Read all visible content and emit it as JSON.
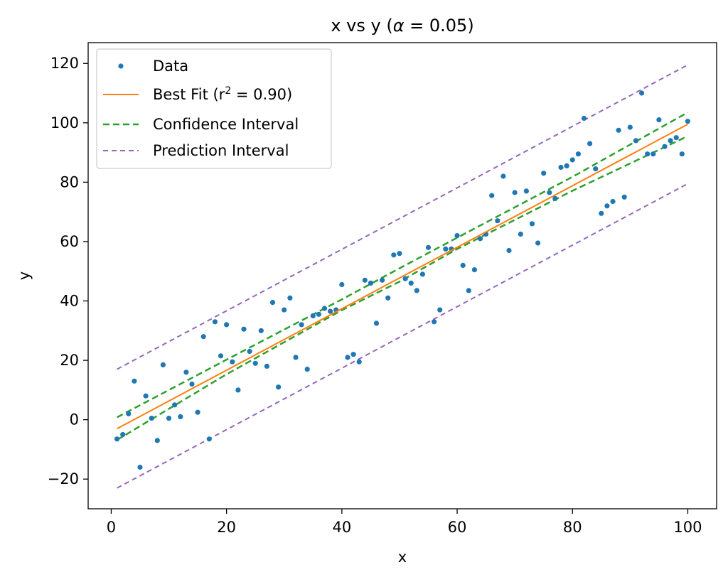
{
  "chart_data": {
    "type": "scatter",
    "title_prefix": "x vs y (",
    "title_alpha_symbol": "α",
    "title_suffix": " = 0.05)",
    "xlabel": "x",
    "ylabel": "y",
    "xlim": [
      -4,
      105
    ],
    "ylim": [
      -30,
      127
    ],
    "xticks": [
      0,
      20,
      40,
      60,
      80,
      100
    ],
    "yticks": [
      -20,
      0,
      20,
      40,
      60,
      80,
      100,
      120
    ],
    "grid": false,
    "legend_position": "top-left",
    "colors": {
      "data": "#1f77b4",
      "best_fit": "#ff7f0e",
      "confidence": "#2ca02c",
      "prediction": "#9467bd"
    },
    "legend": {
      "data": "Data",
      "best_fit_prefix": "Best Fit (",
      "best_fit_r": "r",
      "best_fit_exp": "2",
      "best_fit_suffix": " = 0.90)",
      "confidence": "Confidence Interval",
      "prediction": "Prediction Interval"
    },
    "series": [
      {
        "name": "Data",
        "kind": "scatter",
        "points": [
          [
            1,
            -6.5
          ],
          [
            2,
            -5
          ],
          [
            3,
            2
          ],
          [
            4,
            13
          ],
          [
            5,
            -16
          ],
          [
            6,
            8
          ],
          [
            7,
            0.5
          ],
          [
            8,
            -7
          ],
          [
            9,
            18.5
          ],
          [
            10,
            0.5
          ],
          [
            11,
            5
          ],
          [
            12,
            1
          ],
          [
            13,
            16
          ],
          [
            14,
            12
          ],
          [
            15,
            2.5
          ],
          [
            16,
            28
          ],
          [
            17,
            -6.5
          ],
          [
            18,
            33
          ],
          [
            19,
            21.5
          ],
          [
            20,
            32
          ],
          [
            21,
            19.5
          ],
          [
            22,
            10
          ],
          [
            23,
            30.5
          ],
          [
            24,
            23
          ],
          [
            25,
            19
          ],
          [
            26,
            30
          ],
          [
            27,
            18
          ],
          [
            28,
            39.5
          ],
          [
            29,
            11
          ],
          [
            30,
            37
          ],
          [
            31,
            41
          ],
          [
            32,
            21
          ],
          [
            33,
            32
          ],
          [
            34,
            17
          ],
          [
            35,
            35
          ],
          [
            36,
            35.5
          ],
          [
            37,
            37.5
          ],
          [
            38,
            36.5
          ],
          [
            39,
            37
          ],
          [
            40,
            45.5
          ],
          [
            41,
            21
          ],
          [
            42,
            22
          ],
          [
            43,
            19.5
          ],
          [
            44,
            47
          ],
          [
            45,
            46
          ],
          [
            46,
            32.5
          ],
          [
            47,
            47
          ],
          [
            48,
            41
          ],
          [
            49,
            55.5
          ],
          [
            50,
            56
          ],
          [
            51,
            47.5
          ],
          [
            52,
            46
          ],
          [
            53,
            43.5
          ],
          [
            54,
            49
          ],
          [
            55,
            58
          ],
          [
            56,
            33
          ],
          [
            57,
            37
          ],
          [
            58,
            57.5
          ],
          [
            59,
            57.5
          ],
          [
            60,
            62
          ],
          [
            61,
            52
          ],
          [
            62,
            43.5
          ],
          [
            63,
            50.5
          ],
          [
            64,
            61
          ],
          [
            65,
            62.5
          ],
          [
            66,
            75.5
          ],
          [
            67,
            67
          ],
          [
            68,
            82
          ],
          [
            69,
            57
          ],
          [
            70,
            76.5
          ],
          [
            71,
            62.5
          ],
          [
            72,
            77
          ],
          [
            73,
            66
          ],
          [
            74,
            59.5
          ],
          [
            75,
            83
          ],
          [
            76,
            76.5
          ],
          [
            77,
            74.5
          ],
          [
            78,
            85
          ],
          [
            79,
            85.5
          ],
          [
            80,
            87.5
          ],
          [
            81,
            89.5
          ],
          [
            82,
            101.5
          ],
          [
            83,
            93
          ],
          [
            84,
            84.5
          ],
          [
            85,
            69.5
          ],
          [
            86,
            72
          ],
          [
            87,
            73.5
          ],
          [
            88,
            97.5
          ],
          [
            89,
            75
          ],
          [
            90,
            98.5
          ],
          [
            91,
            94
          ],
          [
            92,
            110
          ],
          [
            93,
            89.5
          ],
          [
            94,
            89.5
          ],
          [
            95,
            101
          ],
          [
            96,
            92
          ],
          [
            97,
            94
          ],
          [
            98,
            95
          ],
          [
            99,
            89.5
          ],
          [
            100,
            100.5
          ]
        ]
      },
      {
        "name": "Best Fit",
        "kind": "line",
        "x": [
          1,
          100
        ],
        "y": [
          -3,
          99.5
        ]
      },
      {
        "name": "Confidence Interval upper",
        "kind": "line",
        "x": [
          1,
          20,
          40,
          50,
          60,
          80,
          100
        ],
        "y": [
          0.8,
          20.2,
          40.5,
          51,
          61.3,
          81.8,
          103.5
        ]
      },
      {
        "name": "Confidence Interval lower",
        "kind": "line",
        "x": [
          1,
          20,
          40,
          50,
          60,
          80,
          100
        ],
        "y": [
          -6.8,
          15.3,
          36.9,
          46.5,
          57.5,
          77.1,
          95.5
        ]
      },
      {
        "name": "Prediction Interval upper",
        "kind": "line",
        "x": [
          1,
          100
        ],
        "y": [
          17,
          119.5
        ]
      },
      {
        "name": "Prediction Interval lower",
        "kind": "line",
        "x": [
          1,
          100
        ],
        "y": [
          -23,
          79.5
        ]
      }
    ]
  }
}
